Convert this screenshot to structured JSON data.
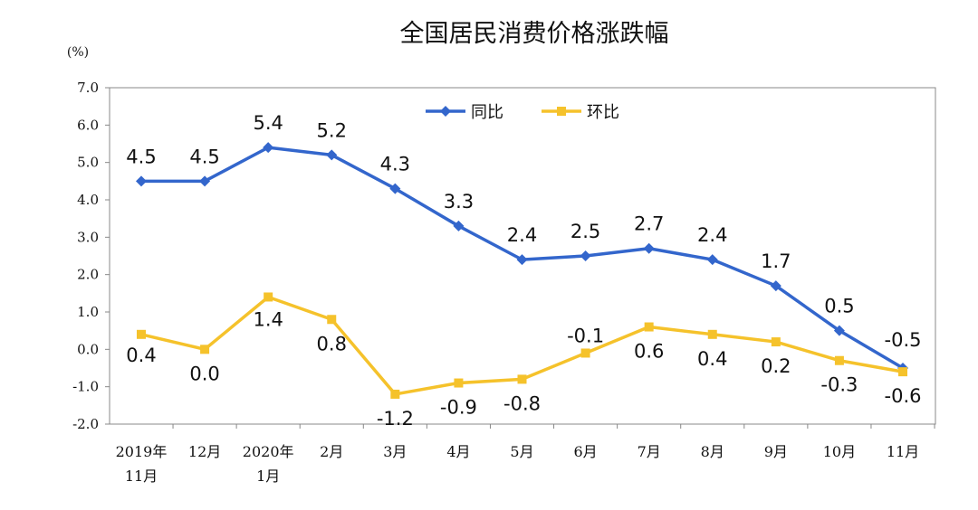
{
  "chart_data": {
    "type": "line",
    "title": "全国居民消费价格涨跌幅",
    "unit_label": "(%)",
    "ylim": [
      -2.0,
      7.0
    ],
    "yticks": [
      "7.0",
      "6.0",
      "5.0",
      "4.0",
      "3.0",
      "2.0",
      "1.0",
      "0.0",
      "-1.0",
      "-2.0"
    ],
    "ytick_values": [
      7,
      6,
      5,
      4,
      3,
      2,
      1,
      0,
      -1,
      -2
    ],
    "categories": [
      [
        "2019年",
        "11月"
      ],
      [
        "12月"
      ],
      [
        "2020年",
        "1月"
      ],
      [
        "2月"
      ],
      [
        "3月"
      ],
      [
        "4月"
      ],
      [
        "5月"
      ],
      [
        "6月"
      ],
      [
        "7月"
      ],
      [
        "8月"
      ],
      [
        "9月"
      ],
      [
        "10月"
      ],
      [
        "11月"
      ]
    ],
    "legend_position": "top-center",
    "grid": false,
    "series": [
      {
        "name": "同比",
        "color": "#3366CC",
        "marker": "diamond",
        "values": [
          4.5,
          4.5,
          5.4,
          5.2,
          4.3,
          3.3,
          2.4,
          2.5,
          2.7,
          2.4,
          1.7,
          0.5,
          -0.5
        ],
        "labels": [
          "4.5",
          "4.5",
          "5.4",
          "5.2",
          "4.3",
          "3.3",
          "2.4",
          "2.5",
          "2.7",
          "2.4",
          "1.7",
          "0.5",
          "-0.5"
        ]
      },
      {
        "name": "环比",
        "color": "#F5C22B",
        "marker": "square",
        "values": [
          0.4,
          0.0,
          1.4,
          0.8,
          -1.2,
          -0.9,
          -0.8,
          -0.1,
          0.6,
          0.4,
          0.2,
          -0.3,
          -0.6
        ],
        "labels": [
          "0.4",
          "0.0",
          "1.4",
          "0.8",
          "-1.2",
          "-0.9",
          "-0.8",
          "-0.1",
          "0.6",
          "0.4",
          "0.2",
          "-0.3",
          "-0.6"
        ]
      }
    ]
  }
}
